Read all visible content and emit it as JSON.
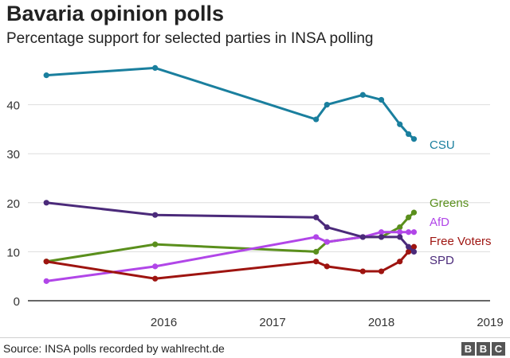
{
  "header": {
    "title": "Bavaria opinion polls",
    "subtitle": "Percentage support for selected parties in INSA polling"
  },
  "footer": {
    "source": "Source: INSA polls recorded by wahlrecht.de",
    "logo_letters": [
      "B",
      "B",
      "C"
    ]
  },
  "chart_data": {
    "type": "line",
    "title": "Bavaria opinion polls",
    "subtitle": "Percentage support for selected parties in INSA polling",
    "x_unit": "year",
    "xlim": [
      2015.25,
      2019.5
    ],
    "ylim": [
      0,
      50
    ],
    "y_ticks": [
      0,
      10,
      20,
      30,
      40
    ],
    "x_ticks": [
      2016,
      2017,
      2018,
      2019
    ],
    "x_tick_labels": [
      "2016",
      "2017",
      "2018",
      "2019"
    ],
    "grid": "horizontal",
    "legend": "direct labels at line ends (right)",
    "series": [
      {
        "name": "CSU",
        "color": "#1a7f9e",
        "x": [
          2015.42,
          2016.42,
          2017.9,
          2018.0,
          2018.33,
          2018.5,
          2018.67,
          2018.75,
          2018.8
        ],
        "y": [
          46,
          47.5,
          37,
          40,
          42,
          41,
          36,
          34,
          33
        ]
      },
      {
        "name": "Greens",
        "color": "#5a8f1c",
        "x": [
          2015.42,
          2016.42,
          2017.9,
          2018.0,
          2018.33,
          2018.5,
          2018.67,
          2018.75,
          2018.8
        ],
        "y": [
          8,
          11.5,
          10,
          12,
          13,
          13,
          15,
          17,
          18
        ]
      },
      {
        "name": "AfD",
        "color": "#b146e8",
        "x": [
          2015.42,
          2016.42,
          2017.9,
          2018.0,
          2018.33,
          2018.5,
          2018.67,
          2018.75,
          2018.8
        ],
        "y": [
          4,
          7,
          13,
          12,
          13,
          14,
          14,
          14,
          14
        ]
      },
      {
        "name": "Free Voters",
        "color": "#9e1410",
        "x": [
          2015.42,
          2016.42,
          2017.9,
          2018.0,
          2018.33,
          2018.5,
          2018.67,
          2018.75,
          2018.8
        ],
        "y": [
          8,
          4.5,
          8,
          7,
          6,
          6,
          8,
          10,
          11
        ]
      },
      {
        "name": "SPD",
        "color": "#4b2a7a",
        "x": [
          2015.42,
          2016.42,
          2017.9,
          2018.0,
          2018.33,
          2018.5,
          2018.67,
          2018.75,
          2018.8
        ],
        "y": [
          20,
          17.5,
          17,
          15,
          13,
          13,
          13,
          11,
          10
        ]
      }
    ]
  }
}
